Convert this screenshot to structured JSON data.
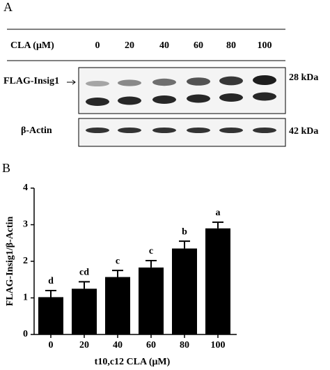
{
  "panel_a": {
    "label": "A",
    "header": "CLA (μM)",
    "concentrations": [
      "0",
      "20",
      "40",
      "60",
      "80",
      "100"
    ],
    "bands": [
      {
        "name": "FLAG-Insig1",
        "size": "28 kDa"
      },
      {
        "name": "β-Actin",
        "size": "42 kDa"
      }
    ]
  },
  "chart_data": {
    "type": "bar",
    "panel_label": "B",
    "ylabel": "FLAG-Insig1/β-Actin",
    "xlabel": "t10,c12 CLA (μM)",
    "categories": [
      "0",
      "20",
      "40",
      "60",
      "80",
      "100"
    ],
    "values": [
      1.02,
      1.25,
      1.57,
      1.83,
      2.35,
      2.9
    ],
    "errors": [
      0.18,
      0.19,
      0.18,
      0.19,
      0.2,
      0.17
    ],
    "annotations": [
      "d",
      "cd",
      "c",
      "c",
      "b",
      "a"
    ],
    "color": "#000000",
    "ylim": [
      0,
      4
    ],
    "yticks": [
      0,
      1,
      2,
      3,
      4
    ]
  }
}
